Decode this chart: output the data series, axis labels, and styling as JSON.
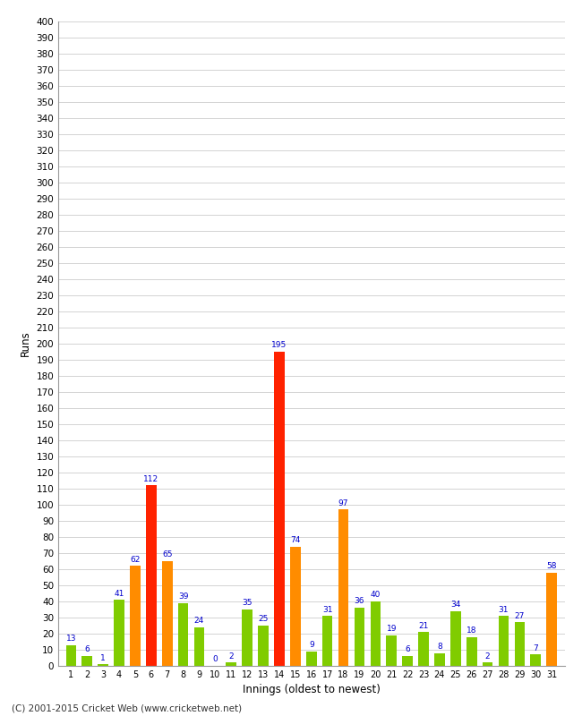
{
  "xlabel": "Innings (oldest to newest)",
  "ylabel": "Runs",
  "values": [
    13,
    6,
    1,
    41,
    62,
    112,
    65,
    39,
    24,
    0,
    2,
    35,
    25,
    195,
    74,
    9,
    31,
    97,
    36,
    40,
    19,
    6,
    21,
    8,
    34,
    18,
    2,
    31,
    27,
    7,
    58
  ],
  "colors": [
    "#80cc00",
    "#80cc00",
    "#80cc00",
    "#80cc00",
    "#ff8c00",
    "#ff2200",
    "#ff8c00",
    "#80cc00",
    "#80cc00",
    "#80cc00",
    "#80cc00",
    "#80cc00",
    "#80cc00",
    "#ff2200",
    "#ff8c00",
    "#80cc00",
    "#80cc00",
    "#ff8c00",
    "#80cc00",
    "#80cc00",
    "#80cc00",
    "#80cc00",
    "#80cc00",
    "#80cc00",
    "#80cc00",
    "#80cc00",
    "#80cc00",
    "#80cc00",
    "#80cc00",
    "#80cc00",
    "#ff8c00"
  ],
  "innings": [
    1,
    2,
    3,
    4,
    5,
    6,
    7,
    8,
    9,
    10,
    11,
    12,
    13,
    14,
    15,
    16,
    17,
    18,
    19,
    20,
    21,
    22,
    23,
    24,
    25,
    26,
    27,
    28,
    29,
    30,
    31
  ],
  "ylim": [
    0,
    400
  ],
  "yticks": [
    0,
    10,
    20,
    30,
    40,
    50,
    60,
    70,
    80,
    90,
    100,
    110,
    120,
    130,
    140,
    150,
    160,
    170,
    180,
    190,
    200,
    210,
    220,
    230,
    240,
    250,
    260,
    270,
    280,
    290,
    300,
    310,
    320,
    330,
    340,
    350,
    360,
    370,
    380,
    390,
    400
  ],
  "background_color": "#ffffff",
  "grid_color": "#cccccc",
  "label_color": "#0000cc",
  "footer": "(C) 2001-2015 Cricket Web (www.cricketweb.net)"
}
